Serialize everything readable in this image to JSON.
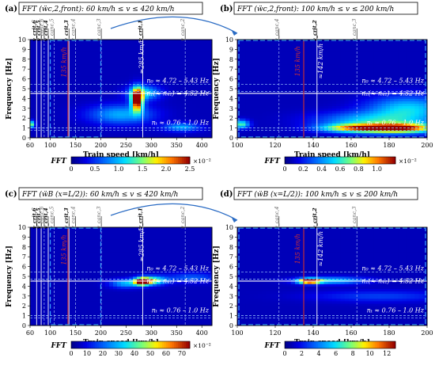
{
  "figure": {
    "colors": {
      "bg_low": "#0c1e8a",
      "accent_blue": "#2b6cc4",
      "resonance_red": "#d03030",
      "grid_white": "#ffffff",
      "box_dash": "#39a0ff"
    }
  },
  "chart_data": [
    {
      "type": "heatmap",
      "panel": "(a)",
      "title": "FFT (ẅc,2,front): 60 km/h ≤ v ≤ 420 km/h",
      "xlabel": "Train speed [km/h]",
      "ylabel": "Frequency [Hz]",
      "xlim": [
        60,
        420
      ],
      "ylim": [
        0,
        10
      ],
      "xticks": [
        "60",
        "100",
        "150",
        "200",
        "250",
        "300",
        "350",
        "400"
      ],
      "yticks": [
        "0",
        "1",
        "2",
        "3",
        "4",
        "5",
        "6",
        "7",
        "8",
        "9",
        "10"
      ],
      "colorbar": {
        "label": "FFT",
        "ticks": [
          "0",
          "0.5",
          "1.0",
          "1.5",
          "2.0",
          "2.5"
        ],
        "scale": "×10⁻²",
        "max": 2.5
      },
      "hlines": [
        4.72,
        5.43,
        4.52,
        0.76,
        1.0
      ],
      "bands": [
        {
          "text": "n₀ ≈ 4.72 – 5.43 Hz"
        },
        {
          "text": "n₁(≈ n₄₁) = 4.52 Hz"
        },
        {
          "text": "nₜ ≈ 0.76 – 1.0 Hz"
        }
      ],
      "critical_speeds": [
        {
          "label": "v_crit,6",
          "x": 73,
          "style": "bold"
        },
        {
          "label": "v_crit,5",
          "x": 82,
          "style": "bold"
        },
        {
          "label": "v_canc,6",
          "x": 88,
          "style": "thin"
        },
        {
          "label": "v_crit,4",
          "x": 96,
          "style": "bold"
        },
        {
          "label": "v_canc,5",
          "x": 108,
          "style": "thin"
        },
        {
          "label": "v_crit,3",
          "x": 137,
          "style": "bold"
        },
        {
          "label": "v_canc,4",
          "x": 150,
          "style": "thin"
        },
        {
          "label": "v_canc,3",
          "x": 201,
          "style": "thin"
        },
        {
          "label": "v_crit,1",
          "x": 283,
          "style": "bold"
        },
        {
          "label": "v_canc,2",
          "x": 367,
          "style": "thin"
        }
      ],
      "annotations": [
        {
          "text": "≈285 km/h",
          "x": 285,
          "y": 8.3,
          "rotate": -90,
          "color": "#ffffff"
        },
        {
          "text": "135 km/h",
          "x": 131,
          "y": 7.7,
          "rotate": -90,
          "color": "#d03030"
        }
      ],
      "hotspots": [
        {
          "x": 272,
          "y": 3.9,
          "intensity": 2.6,
          "sx": 8,
          "sy": 0.8
        },
        {
          "x": 285,
          "y": 4.6,
          "intensity": 1.0,
          "sx": 22,
          "sy": 0.5
        },
        {
          "x": 66,
          "y": 1.4,
          "intensity": 1.6,
          "sx": 3,
          "sy": 0.25
        },
        {
          "x": 360,
          "y": 1.1,
          "intensity": 0.8,
          "sx": 25,
          "sy": 0.3
        },
        {
          "x": 240,
          "y": 2.4,
          "intensity": 0.8,
          "sx": 45,
          "sy": 0.7
        }
      ]
    },
    {
      "type": "heatmap",
      "panel": "(b)",
      "title": "FFT (ẅc,2,front): 100 km/h ≤ v ≤ 200 km/h",
      "xlabel": "Train speed [km/h]",
      "ylabel": "Frequency [Hz]",
      "xlim": [
        100,
        200
      ],
      "ylim": [
        0,
        10
      ],
      "xticks": [
        "100",
        "120",
        "140",
        "160",
        "180",
        "200"
      ],
      "yticks": [
        "0",
        "1",
        "2",
        "3",
        "4",
        "5",
        "6",
        "7",
        "8",
        "9",
        "10"
      ],
      "colorbar": {
        "label": "FFT",
        "ticks": [
          "0",
          "0.2",
          "0.4",
          "0.6",
          "0.8",
          "1.0"
        ],
        "scale": "×10⁻²",
        "max": 1.2
      },
      "hlines": [
        4.72,
        5.43,
        4.52,
        0.76,
        1.0
      ],
      "bands": [
        {
          "text": "n₀ ≈ 4.72 – 5.43 Hz"
        },
        {
          "text": "n₁(≈ n₄₁) = 4.52 Hz"
        },
        {
          "text": "nₜ ≈ 0.76 – 1.0 Hz"
        }
      ],
      "critical_speeds": [
        {
          "label": "v_canc,4",
          "x": 122,
          "style": "thin"
        },
        {
          "label": "v_crit,2",
          "x": 142,
          "style": "bold"
        },
        {
          "label": "v_canc,3",
          "x": 163,
          "style": "thin"
        }
      ],
      "annotations": [
        {
          "text": "≈142 km/h",
          "x": 145,
          "y": 7.8,
          "rotate": -90,
          "color": "#ffffff"
        },
        {
          "text": "135 km/h",
          "x": 133,
          "y": 7.8,
          "rotate": -90,
          "color": "#d03030"
        }
      ],
      "hotspots": [
        {
          "x": 185,
          "y": 1.0,
          "intensity": 1.1,
          "sx": 14,
          "sy": 0.35
        },
        {
          "x": 160,
          "y": 1.0,
          "intensity": 0.7,
          "sx": 12,
          "sy": 0.3
        },
        {
          "x": 102,
          "y": 1.4,
          "intensity": 0.6,
          "sx": 3,
          "sy": 0.3
        },
        {
          "x": 190,
          "y": 3.0,
          "intensity": 0.45,
          "sx": 15,
          "sy": 0.9
        },
        {
          "x": 170,
          "y": 1.8,
          "intensity": 0.4,
          "sx": 20,
          "sy": 0.6
        }
      ]
    },
    {
      "type": "heatmap",
      "panel": "(c)",
      "title": "FFT (ẅB (x=L/2)): 60 km/h ≤ v ≤ 420 km/h",
      "xlabel": "Train speed [km/h]",
      "ylabel": "Frequency [Hz]",
      "xlim": [
        60,
        420
      ],
      "ylim": [
        0,
        10
      ],
      "xticks": [
        "60",
        "100",
        "150",
        "200",
        "250",
        "300",
        "350",
        "400"
      ],
      "yticks": [
        "0",
        "1",
        "2",
        "3",
        "4",
        "5",
        "6",
        "7",
        "8",
        "9",
        "10"
      ],
      "colorbar": {
        "label": "FFT",
        "ticks": [
          "0",
          "10",
          "20",
          "30",
          "40",
          "50",
          "60",
          "70"
        ],
        "scale": "×10⁻²",
        "max": 75
      },
      "hlines": [
        4.72,
        5.43,
        4.52,
        0.76,
        1.0
      ],
      "bands": [
        {
          "text": "n₀ ≈ 4.72 – 5.43 Hz"
        },
        {
          "text": "n₁(≈ n₄₁) = 4.52 Hz"
        },
        {
          "text": "nₜ ≈ 0.76 – 1.0 Hz"
        }
      ],
      "critical_speeds": [
        {
          "label": "v_crit,6",
          "x": 73,
          "style": "bold"
        },
        {
          "label": "v_crit,5",
          "x": 82,
          "style": "bold"
        },
        {
          "label": "v_canc,6",
          "x": 88,
          "style": "thin"
        },
        {
          "label": "v_crit,4",
          "x": 96,
          "style": "bold"
        },
        {
          "label": "v_canc,5",
          "x": 108,
          "style": "thin"
        },
        {
          "label": "v_crit,3",
          "x": 137,
          "style": "bold"
        },
        {
          "label": "v_canc,4",
          "x": 150,
          "style": "thin"
        },
        {
          "label": "v_canc,3",
          "x": 201,
          "style": "thin"
        },
        {
          "label": "v_crit,1",
          "x": 283,
          "style": "bold"
        },
        {
          "label": "v_canc,2",
          "x": 367,
          "style": "thin"
        }
      ],
      "annotations": [
        {
          "text": "≈285 km/h",
          "x": 285,
          "y": 8.3,
          "rotate": -90,
          "color": "#ffffff"
        },
        {
          "text": "135 km/h",
          "x": 131,
          "y": 7.7,
          "rotate": -90,
          "color": "#d03030"
        }
      ],
      "hotspots": [
        {
          "x": 282,
          "y": 4.5,
          "intensity": 75,
          "sx": 10,
          "sy": 0.25
        },
        {
          "x": 300,
          "y": 4.6,
          "intensity": 45,
          "sx": 20,
          "sy": 0.3
        },
        {
          "x": 250,
          "y": 4.3,
          "intensity": 25,
          "sx": 22,
          "sy": 0.3
        },
        {
          "x": 380,
          "y": 4.9,
          "intensity": 15,
          "sx": 35,
          "sy": 0.35
        }
      ]
    },
    {
      "type": "heatmap",
      "panel": "(d)",
      "title": "FFT (ẅB (x=L/2)): 100 km/h ≤ v ≤ 200 km/h",
      "xlabel": "Train speed [km/h]",
      "ylabel": "Frequency [Hz]",
      "xlim": [
        100,
        200
      ],
      "ylim": [
        0,
        10
      ],
      "xticks": [
        "100",
        "120",
        "140",
        "160",
        "180",
        "200"
      ],
      "yticks": [
        "0",
        "1",
        "2",
        "3",
        "4",
        "5",
        "6",
        "7",
        "8",
        "9",
        "10"
      ],
      "colorbar": {
        "label": "FFT",
        "ticks": [
          "0",
          "2",
          "4",
          "6",
          "8",
          "10",
          "12"
        ],
        "scale": "",
        "max": 13
      },
      "hlines": [
        4.72,
        5.43,
        4.52,
        0.76,
        1.0
      ],
      "bands": [
        {
          "text": "n₀ ≈ 4.72 – 5.43 Hz"
        },
        {
          "text": "n₁(≈ n₄₁) = 4.52 Hz"
        },
        {
          "text": "nₜ ≈ 0.76 – 1.0 Hz"
        }
      ],
      "critical_speeds": [
        {
          "label": "v_canc,4",
          "x": 122,
          "style": "thin"
        },
        {
          "label": "v_crit,2",
          "x": 142,
          "style": "bold"
        },
        {
          "label": "v_canc,3",
          "x": 163,
          "style": "thin"
        }
      ],
      "annotations": [
        {
          "text": "≈142 km/h",
          "x": 145,
          "y": 7.8,
          "rotate": -90,
          "color": "#ffffff"
        },
        {
          "text": "135 km/h",
          "x": 133,
          "y": 7.8,
          "rotate": -90,
          "color": "#d03030"
        }
      ],
      "hotspots": [
        {
          "x": 138,
          "y": 4.55,
          "intensity": 13,
          "sx": 4,
          "sy": 0.18
        },
        {
          "x": 150,
          "y": 4.6,
          "intensity": 5,
          "sx": 12,
          "sy": 0.25
        },
        {
          "x": 175,
          "y": 3.0,
          "intensity": 2,
          "sx": 25,
          "sy": 0.4
        }
      ]
    }
  ]
}
